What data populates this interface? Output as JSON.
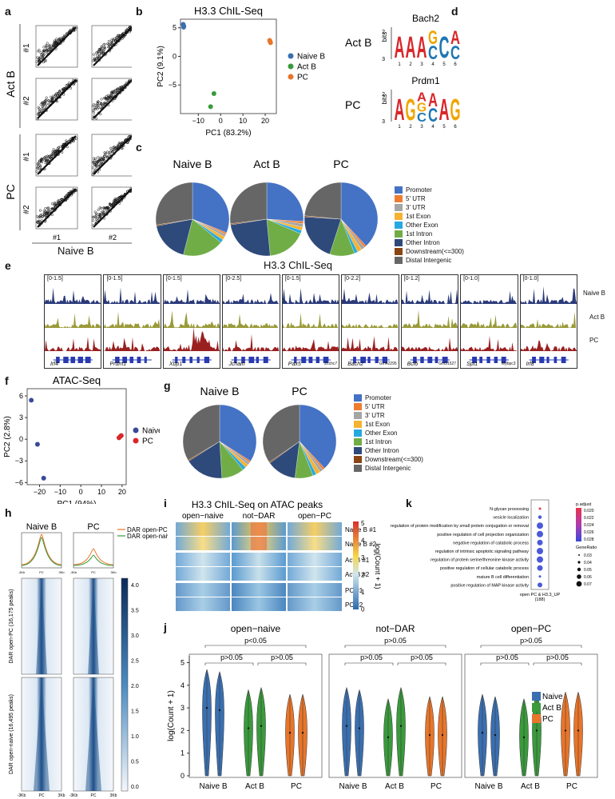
{
  "panels": {
    "a": {
      "label": "a",
      "row_labels": [
        "Act B",
        "PC"
      ],
      "rep_labels": [
        "#1",
        "#2"
      ],
      "col_labels": [
        "#1",
        "#2"
      ],
      "xlabel": "Naive B"
    },
    "b": {
      "label": "b"
    },
    "c": {
      "label": "c",
      "titles": [
        "Naive B",
        "Act B",
        "PC"
      ]
    },
    "d": {
      "label": "d",
      "motifs": [
        {
          "row": "Act B",
          "name": "Bach2",
          "letters": [
            "A",
            "A",
            "A",
            "G/C",
            "C",
            "A/C"
          ],
          "ylabel": "bits"
        },
        {
          "row": "PC",
          "name": "Prdm1",
          "letters": [
            "A",
            "G",
            "A/G/C",
            "A/C",
            "A",
            "G"
          ],
          "ylabel": "bits"
        }
      ],
      "positions": [
        "1",
        "2",
        "3",
        "4",
        "5",
        "6"
      ],
      "ticks": [
        "2",
        "3"
      ]
    },
    "e": {
      "label": "e",
      "title": "H3.3 ChIL-Seq",
      "tracks": [
        "Naive B",
        "Act B",
        "PC"
      ],
      "loci": [
        {
          "range": "[0-1.5]",
          "gene": "Irf4",
          "extra": ""
        },
        {
          "range": "[0-1.5]",
          "gene": "Prdm1",
          "extra": ""
        },
        {
          "range": "[0-1.5]",
          "gene": "Xbp1",
          "extra": ""
        },
        {
          "range": "[0-2.5]",
          "gene": "Jchain",
          "extra": ""
        },
        {
          "range": "[0-1.5]",
          "gene": "Pax5",
          "extra": "Zcchc7"
        },
        {
          "range": "[0-2.2]",
          "gene": "Bach2",
          "extra": "Gm42295"
        },
        {
          "range": "[0-1.2]",
          "gene": "Bcl6",
          "extra": "Gm31527"
        },
        {
          "range": "[0-1.0]",
          "gene": "Spi1",
          "extra": "Mybpc3"
        },
        {
          "range": "[0-1.0]",
          "gene": "Irf8",
          "extra": ""
        }
      ]
    },
    "f": {
      "label": "f"
    },
    "g": {
      "label": "g",
      "titles": [
        "Naive B",
        "PC"
      ]
    },
    "h": {
      "label": "h",
      "col_titles": [
        "Naive B",
        "PC"
      ],
      "legend": [
        "DAR open-PC",
        "DAR open-naive"
      ],
      "row_labels": [
        "DAR open-PC (16,175 peaks)",
        "DAR open-naive (16,495 peaks)"
      ],
      "x_ticks": [
        "-3Kb",
        "PC",
        "3Kb"
      ],
      "scale_ticks": [
        "4.0",
        "3.5",
        "3.0",
        "2.5",
        "2.0",
        "1.5",
        "1.0",
        "0.5",
        "0.0"
      ]
    },
    "i": {
      "label": "i",
      "title": "H3.3 ChIL-Seq on ATAC peaks",
      "col_titles": [
        "open−naive",
        "not−DAR",
        "open−PC"
      ],
      "row_labels": [
        "Naive B #1",
        "Naive B #2",
        "Act B #1",
        "Act B #2",
        "PC #1",
        "PC #2"
      ],
      "scale_title": "log(Count + 1)",
      "scale_ticks": [
        "5",
        "4",
        "3",
        "2",
        "1",
        "0"
      ]
    },
    "j": {
      "label": "j"
    },
    "k": {
      "label": "k",
      "terms": [
        "N-glycan processing",
        "vesicle localization",
        "regulation of protein modification by small protein conjugation or removal",
        "positive regulation of cell projection organization",
        "negative regulation of catabolic process",
        "regulation of intrinsic apoptotic signaling pathway",
        "regulation of protein serine/threonine kinase activity",
        "positive regulation of cellular catabolic process",
        "mature B cell differentiation",
        "positive regulation of MAP kinase activity"
      ],
      "xlab1": "open PC & H3.3_UP",
      "xlab2": "(188)",
      "padj_title": "p.adjust",
      "padj_ticks": [
        "0.020",
        "0.022",
        "0.024",
        "0.026",
        "0.028"
      ],
      "ratio_title": "GeneRatio",
      "ratio_ticks": [
        "0.03",
        "0.04",
        "0.05",
        "0.06",
        "0.07"
      ]
    }
  },
  "colors": {
    "naive": "#3a6fb0",
    "actb": "#3a9a3c",
    "pc": "#e8752a",
    "track_naive": "#2a3a7a",
    "track_actb": "#9a9a3a",
    "track_pc": "#9a2020"
  },
  "annotation_legend": [
    "Promoter",
    "5' UTR",
    "3' UTR",
    "1st Exon",
    "Other Exon",
    "1st Intron",
    "Other Intron",
    "Downstream(<=300)",
    "Distal Intergenic"
  ],
  "annotation_colors": [
    "#4472c4",
    "#ed7d31",
    "#a5a5a5",
    "#f5b233",
    "#26a9e0",
    "#70ad47",
    "#2e4a7a",
    "#8b4513",
    "#666666"
  ],
  "chart_data": [
    {
      "id": "b",
      "type": "scatter",
      "title": "H3.3 ChIL-Seq",
      "xlabel": "PC1 (83.2%)",
      "ylabel": "PC2 (9.1%)",
      "xlim": [
        -18,
        25
      ],
      "ylim": [
        -10,
        6.5
      ],
      "xticks": [
        -10,
        0,
        10,
        20
      ],
      "yticks": [
        -5,
        0,
        5
      ],
      "series": [
        {
          "name": "Naive B",
          "color": "#3a6fb0",
          "points": [
            [
              -16.8,
              5.6
            ],
            [
              -16.6,
              5.1
            ],
            [
              -16.5,
              5.3
            ]
          ]
        },
        {
          "name": "Act B",
          "color": "#3a9a3c",
          "points": [
            [
              -3.0,
              -6.5
            ],
            [
              -4.5,
              -8.8
            ]
          ]
        },
        {
          "name": "PC",
          "color": "#e8752a",
          "points": [
            [
              22.0,
              2.8
            ],
            [
              22.4,
              2.4
            ],
            [
              22.2,
              2.6
            ]
          ]
        }
      ]
    },
    {
      "id": "c",
      "type": "pie",
      "pies": [
        {
          "title": "Naive B",
          "values": [
            31,
            0.8,
            1.2,
            1.5,
            1.5,
            18,
            18,
            0.5,
            27.5
          ]
        },
        {
          "title": "Act B",
          "values": [
            26,
            1,
            1.5,
            1.5,
            1.5,
            17,
            24,
            0.5,
            27
          ]
        },
        {
          "title": "PC",
          "values": [
            38,
            1,
            1.5,
            2,
            1.5,
            11,
            21,
            0.5,
            23.5
          ]
        }
      ],
      "labels": [
        "Promoter",
        "5' UTR",
        "3' UTR",
        "1st Exon",
        "Other Exon",
        "1st Intron",
        "Other Intron",
        "Downstream(<=300)",
        "Distal Intergenic"
      ]
    },
    {
      "id": "f",
      "type": "scatter",
      "title": "ATAC-Seq",
      "xlabel": "PC1 (94%)",
      "ylabel": "PC2 (2.8%)",
      "xlim": [
        -26,
        22
      ],
      "ylim": [
        -6.3,
        7
      ],
      "xticks": [
        -20,
        -10,
        0,
        10,
        20
      ],
      "yticks": [
        -6,
        -3,
        0,
        3,
        6
      ],
      "series": [
        {
          "name": "Naive B",
          "color": "#3a4a9a",
          "points": [
            [
              -24,
              5.4
            ],
            [
              -21,
              -0.7
            ],
            [
              -18,
              -5.4
            ]
          ]
        },
        {
          "name": "PC",
          "color": "#d9262a",
          "points": [
            [
              18.5,
              0.2
            ],
            [
              19.2,
              0.4
            ],
            [
              19.6,
              0.5
            ]
          ]
        }
      ]
    },
    {
      "id": "g",
      "type": "pie",
      "pies": [
        {
          "title": "Naive B",
          "values": [
            34,
            0.8,
            1.2,
            1.5,
            1.5,
            10,
            17,
            0.5,
            33.5
          ]
        },
        {
          "title": "PC",
          "values": [
            38,
            1,
            1.5,
            2,
            1.5,
            8,
            13,
            0.5,
            34.5
          ]
        }
      ],
      "labels": [
        "Promoter",
        "5' UTR",
        "3' UTR",
        "1st Exon",
        "Other Exon",
        "1st Intron",
        "Other Intron",
        "Downstream(<=300)",
        "Distal Intergenic"
      ]
    },
    {
      "id": "j",
      "type": "violin",
      "ylabel": "log(Count + 1)",
      "ylim": [
        0,
        5.3
      ],
      "yticks": [
        0,
        1,
        2,
        3,
        4,
        5
      ],
      "groups": [
        {
          "title": "open−naive",
          "stats": [
            {
              "text": "p<0.05",
              "level": 1
            },
            {
              "text": "p>0.05",
              "level": 0,
              "side": "left"
            },
            {
              "text": "p>0.05",
              "level": 0,
              "side": "right"
            }
          ],
          "categories": [
            "Naive B",
            "Act B",
            "PC"
          ],
          "medians": [
            [
              3.0,
              2.9
            ],
            [
              2.1,
              2.2
            ],
            [
              1.9,
              1.9
            ]
          ]
        },
        {
          "title": "not−DAR",
          "stats": [
            {
              "text": "p>0.05",
              "level": 1
            },
            {
              "text": "p>0.05",
              "level": 0,
              "side": "left"
            },
            {
              "text": "p>0.05",
              "level": 0,
              "side": "right"
            }
          ],
          "categories": [
            "Naive B",
            "Act B",
            "PC"
          ],
          "medians": [
            [
              2.2,
              2.1
            ],
            [
              1.7,
              2.2
            ],
            [
              1.8,
              1.8
            ]
          ]
        },
        {
          "title": "open−PC",
          "stats": [
            {
              "text": "p>0.05",
              "level": 1
            },
            {
              "text": "p>0.05",
              "level": 0,
              "side": "left"
            },
            {
              "text": "p>0.05",
              "level": 0,
              "side": "right"
            }
          ],
          "categories": [
            "Naive B",
            "Act B",
            "PC"
          ],
          "medians": [
            [
              1.9,
              1.8
            ],
            [
              1.7,
              2.0
            ],
            [
              2.0,
              2.0
            ]
          ]
        }
      ],
      "legend": [
        {
          "name": "Naive",
          "color": "#3a6fb0"
        },
        {
          "name": "Act B",
          "color": "#3a9a3c"
        },
        {
          "name": "PC",
          "color": "#e8752a"
        }
      ]
    }
  ]
}
